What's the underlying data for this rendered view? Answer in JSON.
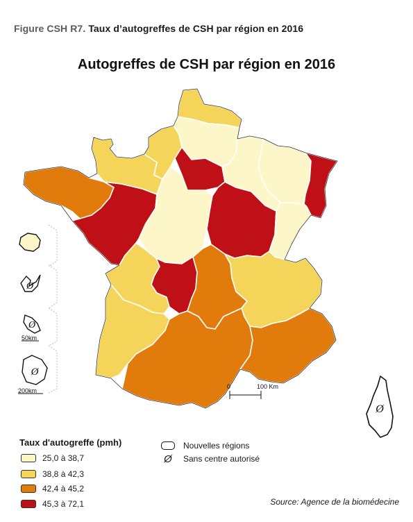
{
  "figure": {
    "number": "Figure CSH R7.",
    "caption": "Taux d’autogreffes de CSH par région en 2016"
  },
  "map": {
    "title": "Autogreffes de CSH par région en 2016",
    "colors": {
      "class1": "#fdf6c8",
      "class2": "#f5d45a",
      "class3": "#e17b0b",
      "class4": "#c01017",
      "border": "#ffffff",
      "outline": "#222222"
    },
    "scale_bar": {
      "start": "0",
      "end": "100 Km"
    },
    "inset_scales": [
      "50km",
      "200km"
    ],
    "no_centre_symbol": "Ø"
  },
  "legend": {
    "title": "Taux d'autogreffe (pmh)",
    "classes": [
      {
        "label": "25,0 à 38,7",
        "color": "#fdf6c8"
      },
      {
        "label": "38,8 à 42,3",
        "color": "#f5d45a"
      },
      {
        "label": "42,4 à 45,2",
        "color": "#e17b0b"
      },
      {
        "label": "45,3 à 72,1",
        "color": "#c01017"
      }
    ],
    "regions_label": "Nouvelles régions",
    "no_centre_label": "Sans centre autorisé"
  },
  "source": "Source: Agence de la biomédecine"
}
